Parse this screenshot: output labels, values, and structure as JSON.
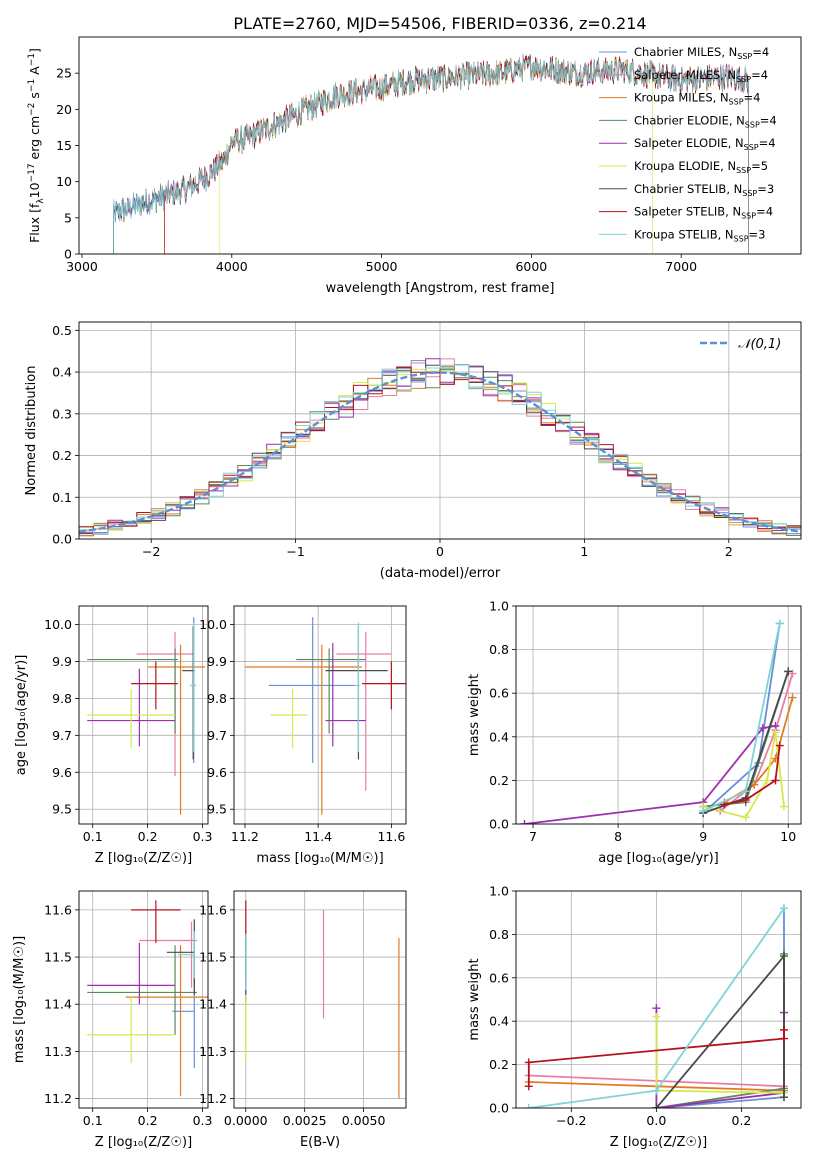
{
  "figure": {
    "title": "PLATE=2760, MJD=54506, FIBERID=0336, z=0.214"
  },
  "models": [
    {
      "label": "Chabrier MILES, N",
      "nssp": "=4",
      "color": "#6a8fd8"
    },
    {
      "label": "Salpeter MILES, N",
      "nssp": "=4",
      "color": "#e87ea6"
    },
    {
      "label": "Kroupa MILES, N",
      "nssp": "=4",
      "color": "#e07b24"
    },
    {
      "label": "Chabrier ELODIE, N",
      "nssp": "=4",
      "color": "#5a8a5e"
    },
    {
      "label": "Salpeter ELODIE, N",
      "nssp": "=4",
      "color": "#9b2fae"
    },
    {
      "label": "Kroupa ELODIE, N",
      "nssp": "=5",
      "color": "#d6e84a"
    },
    {
      "label": "Chabrier STELIB, N",
      "nssp": "=3",
      "color": "#4a4a4a"
    },
    {
      "label": "Salpeter STELIB, N",
      "nssp": "=4",
      "color": "#b5121b"
    },
    {
      "label": "Kroupa STELIB, N",
      "nssp": "=3",
      "color": "#7fd3d6"
    }
  ],
  "nssp_subscript": "SSP",
  "chart_data": [
    {
      "id": "spectrum",
      "type": "line",
      "xlabel": "wavelength [Angstrom, rest frame]",
      "ylabel": "Flux [f_λ 10^-17 erg cm^-2 s^-1 A^-1]",
      "xlim": [
        2980,
        7800
      ],
      "ylim": [
        0,
        30
      ],
      "xticks": [
        3000,
        4000,
        5000,
        6000,
        7000
      ],
      "yticks": [
        0,
        5,
        10,
        15,
        20,
        25
      ],
      "continuum": [
        [
          3200,
          5.5
        ],
        [
          3400,
          7
        ],
        [
          3550,
          8
        ],
        [
          3700,
          9
        ],
        [
          3850,
          11
        ],
        [
          3950,
          13
        ],
        [
          4000,
          15.5
        ],
        [
          4100,
          16
        ],
        [
          4300,
          18
        ],
        [
          4500,
          20
        ],
        [
          4700,
          22
        ],
        [
          5000,
          23
        ],
        [
          5200,
          24
        ],
        [
          5500,
          24.5
        ],
        [
          5800,
          25
        ],
        [
          6000,
          26
        ],
        [
          6300,
          25
        ],
        [
          6600,
          25.5
        ],
        [
          7000,
          24
        ],
        [
          7300,
          24.5
        ],
        [
          7450,
          24
        ]
      ],
      "start_wavelengths": [
        3210,
        3210,
        3550,
        3210,
        3210,
        3920,
        3210,
        3550,
        3210
      ],
      "end_wavelengths": [
        7450,
        7450,
        7450,
        7450,
        7450,
        6810,
        7450,
        7450,
        7450
      ]
    },
    {
      "id": "residual_histogram",
      "type": "histogram",
      "xlabel": "(data-model)/error",
      "ylabel": "Normed distribution",
      "xlim": [
        -2.5,
        2.5
      ],
      "ylim": [
        0,
        0.52
      ],
      "xticks": [
        -2,
        -1,
        0,
        1,
        2
      ],
      "yticks": [
        0.0,
        0.1,
        0.2,
        0.3,
        0.4,
        0.5
      ],
      "bin_width": 0.1,
      "legend": "𝒩(0,1)",
      "gaussian": {
        "mean": 0,
        "sigma": 1,
        "color": "#5b8fd6"
      }
    },
    {
      "id": "age_vs_Z",
      "type": "errorbar",
      "xlabel": "Z [log₁₀(Z/Z☉)]",
      "ylabel": "age  [log₁₀(age/yr)]",
      "xlim": [
        0.075,
        0.31
      ],
      "ylim": [
        9.46,
        10.05
      ],
      "xticks": [
        0.1,
        0.2,
        0.3
      ],
      "yticks": [
        9.5,
        9.6,
        9.7,
        9.8,
        9.9,
        10.0
      ],
      "points": [
        {
          "x": 0.284,
          "xerr": [
            0.004,
            0.004
          ],
          "y": 9.835,
          "yerr": [
            0.21,
            0.185
          ]
        },
        {
          "x": 0.25,
          "xerr": [
            0.07,
            0.035
          ],
          "y": 9.92,
          "yerr": [
            0.33,
            0.06
          ]
        },
        {
          "x": 0.26,
          "xerr": [
            0.06,
            0.045
          ],
          "y": 9.885,
          "yerr": [
            0.4,
            0.06
          ]
        },
        {
          "x": 0.25,
          "xerr": [
            0.16,
            0.005
          ],
          "y": 9.905,
          "yerr": [
            0.2,
            0.03
          ]
        },
        {
          "x": 0.185,
          "xerr": [
            0.095,
            0.065
          ],
          "y": 9.74,
          "yerr": [
            0.07,
            0.14
          ]
        },
        {
          "x": 0.17,
          "xerr": [
            0.08,
            0.08
          ],
          "y": 9.755,
          "yerr": [
            0.09,
            0.07
          ]
        },
        {
          "x": 0.283,
          "xerr": [
            0.02,
            0.003
          ],
          "y": 9.875,
          "yerr": [
            0.24,
            0.12
          ]
        },
        {
          "x": 0.215,
          "xerr": [
            0.045,
            0.04
          ],
          "y": 9.84,
          "yerr": [
            0.07,
            0.06
          ]
        },
        {
          "x": 0.284,
          "xerr": [
            0.007,
            0.003
          ],
          "y": 9.835,
          "yerr": [
            0.18,
            0.17
          ]
        }
      ]
    },
    {
      "id": "age_vs_mass",
      "type": "errorbar",
      "xlabel": "mass [log₁₀(M/M☉)]",
      "ylabel": "",
      "xlim": [
        11.17,
        11.64
      ],
      "ylim": [
        9.46,
        10.05
      ],
      "xticks": [
        11.2,
        11.4,
        11.6
      ],
      "yticks": [
        9.5,
        9.6,
        9.7,
        9.8,
        9.9,
        10.0
      ],
      "points": [
        {
          "x": 11.385,
          "xerr": [
            0.12,
            0.115
          ],
          "y": 9.835,
          "yerr": [
            0.21,
            0.185
          ]
        },
        {
          "x": 11.53,
          "xerr": [
            0.08,
            0.07
          ],
          "y": 9.92,
          "yerr": [
            0.37,
            0.06
          ]
        },
        {
          "x": 11.41,
          "xerr": [
            0.21,
            0.11
          ],
          "y": 9.885,
          "yerr": [
            0.4,
            0.06
          ]
        },
        {
          "x": 11.43,
          "xerr": [
            0.09,
            0.1
          ],
          "y": 9.905,
          "yerr": [
            0.2,
            0.03
          ]
        },
        {
          "x": 11.44,
          "xerr": [
            0.02,
            0.09
          ],
          "y": 9.74,
          "yerr": [
            0.07,
            0.21
          ]
        },
        {
          "x": 11.33,
          "xerr": [
            0.06,
            0.04
          ],
          "y": 9.755,
          "yerr": [
            0.09,
            0.07
          ]
        },
        {
          "x": 11.51,
          "xerr": [
            0.09,
            0.08
          ],
          "y": 9.875,
          "yerr": [
            0.24,
            0.12
          ]
        },
        {
          "x": 11.6,
          "xerr": [
            0.08,
            0.04
          ],
          "y": 9.84,
          "yerr": [
            0.07,
            0.06
          ]
        },
        {
          "x": 11.51,
          "xerr": [
            0.01,
            0.005
          ],
          "y": 9.835,
          "yerr": [
            0.18,
            0.17
          ]
        }
      ]
    },
    {
      "id": "weight_vs_age",
      "type": "line",
      "xlabel": "age  [log₁₀(age/yr)]",
      "ylabel": "mass weight",
      "xlim": [
        6.8,
        10.15
      ],
      "ylim": [
        0,
        1.0
      ],
      "xticks": [
        7,
        8,
        9,
        10
      ],
      "yticks": [
        0.0,
        0.2,
        0.4,
        0.6,
        0.8,
        1.0
      ],
      "series": [
        {
          "x": [
            9.0,
            9.65,
            9.9
          ],
          "y": [
            0.05,
            0.28,
            0.92
          ]
        },
        {
          "x": [
            9.2,
            9.6,
            9.85,
            10.05
          ],
          "y": [
            0.06,
            0.18,
            0.43,
            0.69
          ]
        },
        {
          "x": [
            9.25,
            9.6,
            9.85,
            10.05
          ],
          "y": [
            0.1,
            0.18,
            0.3,
            0.58
          ]
        },
        {
          "x": [
            9.0,
            9.5,
            10.0
          ],
          "y": [
            0.08,
            0.1,
            0.7
          ]
        },
        {
          "x": [
            6.9,
            9.0,
            9.7,
            9.85
          ],
          "y": [
            0.0,
            0.1,
            0.44,
            0.45
          ]
        },
        {
          "x": [
            9.0,
            9.5,
            9.75,
            9.85,
            9.95
          ],
          "y": [
            0.08,
            0.03,
            0.2,
            0.42,
            0.08
          ]
        },
        {
          "x": [
            9.0,
            9.5,
            10.0
          ],
          "y": [
            0.05,
            0.12,
            0.7
          ]
        },
        {
          "x": [
            9.25,
            9.5,
            9.85,
            9.9
          ],
          "y": [
            0.09,
            0.11,
            0.2,
            0.36
          ]
        },
        {
          "x": [
            9.0,
            9.5,
            9.9
          ],
          "y": [
            0.06,
            0.15,
            0.92
          ]
        }
      ]
    },
    {
      "id": "mass_vs_Z",
      "type": "errorbar",
      "xlabel": "Z [log₁₀(Z/Z☉)]",
      "ylabel": "mass [log₁₀(M/M☉)]",
      "xlim": [
        0.075,
        0.31
      ],
      "ylim": [
        11.18,
        11.64
      ],
      "xticks": [
        0.1,
        0.2,
        0.3
      ],
      "yticks": [
        11.2,
        11.3,
        11.4,
        11.5,
        11.6
      ],
      "points": [
        {
          "x": 0.285,
          "xerr": [
            0.04,
            0.0
          ],
          "y": 11.385,
          "yerr": [
            0.12,
            0.115
          ]
        },
        {
          "x": 0.28,
          "xerr": [
            0.095,
            0.01
          ],
          "y": 11.535,
          "yerr": [
            0.1,
            0.04
          ]
        },
        {
          "x": 0.26,
          "xerr": [
            0.1,
            0.055
          ],
          "y": 11.415,
          "yerr": [
            0.21,
            0.11
          ]
        },
        {
          "x": 0.25,
          "xerr": [
            0.16,
            0.04
          ],
          "y": 11.425,
          "yerr": [
            0.09,
            0.1
          ]
        },
        {
          "x": 0.185,
          "xerr": [
            0.095,
            0.065
          ],
          "y": 11.44,
          "yerr": [
            0.04,
            0.09
          ]
        },
        {
          "x": 0.17,
          "xerr": [
            0.08,
            0.08
          ],
          "y": 11.335,
          "yerr": [
            0.06,
            0.08
          ]
        },
        {
          "x": 0.285,
          "xerr": [
            0.05,
            0.0
          ],
          "y": 11.51,
          "yerr": [
            0.09,
            0.07
          ]
        },
        {
          "x": 0.215,
          "xerr": [
            0.045,
            0.045
          ],
          "y": 11.6,
          "yerr": [
            0.07,
            0.02
          ]
        },
        {
          "x": 0.285,
          "xerr": [
            0.03,
            0.0
          ],
          "y": 11.505,
          "yerr": [
            0.05,
            0.05
          ]
        }
      ]
    },
    {
      "id": "mass_vs_EBV",
      "type": "errorbar",
      "xlabel": "E(B-V)",
      "ylabel": "",
      "xlim": [
        -0.0005,
        0.0068
      ],
      "ylim": [
        11.18,
        11.64
      ],
      "xticks": [
        0.0,
        0.0025,
        0.005
      ],
      "xticklabels": [
        "0.0000",
        "0.0025",
        "0.0050"
      ],
      "yticks": [
        11.2,
        11.3,
        11.4,
        11.5,
        11.6
      ],
      "points": [
        {
          "x": 0.0,
          "xerr": [
            0.0,
            0.0
          ],
          "y": 11.475,
          "yerr": [
            0.06,
            0.08
          ]
        },
        {
          "x": 0.0033,
          "xerr": [
            0.0,
            0.0
          ],
          "y": 11.485,
          "yerr": [
            0.115,
            0.115
          ]
        },
        {
          "x": 0.0065,
          "xerr": [
            0.0,
            0.0
          ],
          "y": 11.37,
          "yerr": [
            0.17,
            0.17
          ]
        },
        {
          "x": 0.0,
          "xerr": [
            0.0,
            0.0
          ],
          "y": 11.46,
          "yerr": [
            0.06,
            0.08
          ]
        },
        {
          "x": 0.0,
          "xerr": [
            0.0,
            0.0
          ],
          "y": 11.47,
          "yerr": [
            0.06,
            0.08
          ]
        },
        {
          "x": 0.0,
          "xerr": [
            0.0,
            0.0
          ],
          "y": 11.35,
          "yerr": [
            0.07,
            0.07
          ]
        },
        {
          "x": 0.0,
          "xerr": [
            0.0,
            0.0
          ],
          "y": 11.5,
          "yerr": [
            0.05,
            0.05
          ]
        },
        {
          "x": 0.0,
          "xerr": [
            0.0,
            0.0
          ],
          "y": 11.58,
          "yerr": [
            0.04,
            0.04
          ]
        },
        {
          "x": 0.0,
          "xerr": [
            0.0,
            0.0
          ],
          "y": 11.49,
          "yerr": [
            0.06,
            0.06
          ]
        }
      ]
    },
    {
      "id": "weight_vs_Z",
      "type": "line",
      "xlabel": "Z [log₁₀(Z/Z☉)]",
      "ylabel": "mass weight",
      "xlim": [
        -0.33,
        0.34
      ],
      "ylim": [
        0,
        1.0
      ],
      "xticks": [
        -0.2,
        0.0,
        0.2
      ],
      "yticks": [
        0.0,
        0.2,
        0.4,
        0.6,
        0.8,
        1.0
      ],
      "series": [
        {
          "x": [
            0.0,
            0.3,
            0.3
          ],
          "y": [
            0.0,
            0.05,
            0.92
          ]
        },
        {
          "x": [
            -0.3,
            0.3
          ],
          "y": [
            0.15,
            0.1
          ]
        },
        {
          "x": [
            -0.3,
            0.0,
            0.3
          ],
          "y": [
            0.12,
            0.1,
            0.08
          ]
        },
        {
          "x": [
            0.0,
            0.3,
            0.3
          ],
          "y": [
            0.0,
            0.09,
            0.71
          ]
        },
        {
          "x": [
            0.0,
            0.0,
            0.3,
            0.3
          ],
          "y": [
            0.46,
            0.0,
            0.07,
            0.44
          ]
        },
        {
          "x": [
            0.0,
            0.0,
            0.3
          ],
          "y": [
            0.42,
            0.08,
            0.07
          ]
        },
        {
          "x": [
            0.0,
            0.3,
            0.3
          ],
          "y": [
            0.0,
            0.7,
            0.05
          ]
        },
        {
          "x": [
            -0.3,
            -0.3,
            0.3,
            0.3
          ],
          "y": [
            0.1,
            0.21,
            0.32,
            0.36
          ]
        },
        {
          "x": [
            -0.3,
            0.0,
            0.3
          ],
          "y": [
            0.0,
            0.08,
            0.92
          ]
        }
      ]
    }
  ]
}
